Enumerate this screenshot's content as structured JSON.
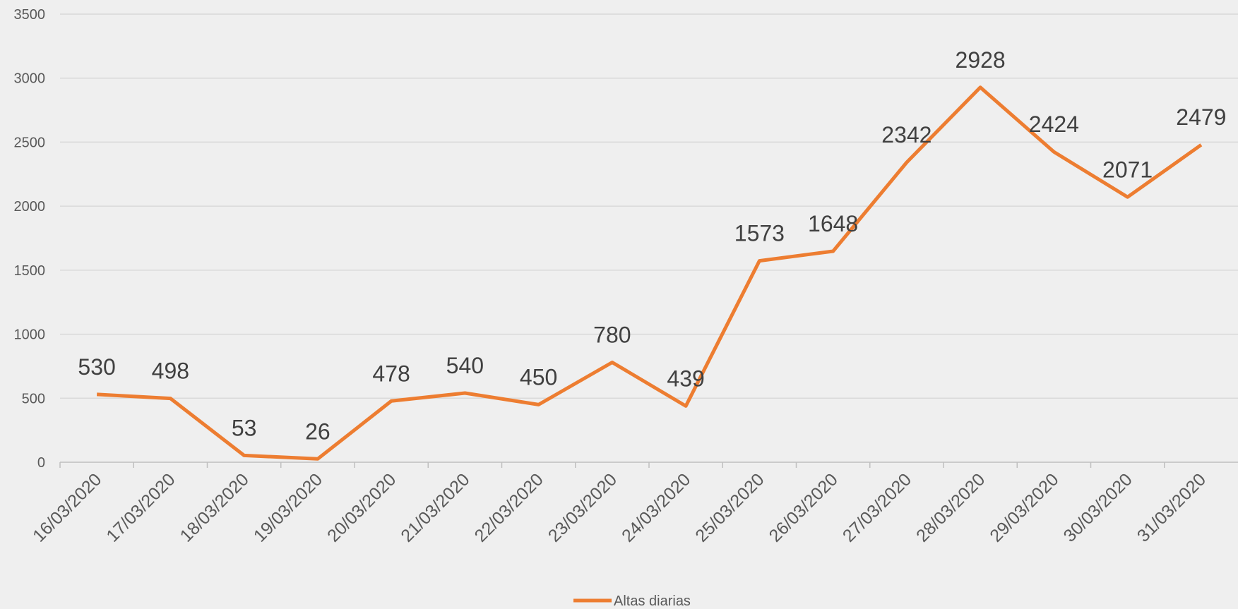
{
  "chart_data": {
    "type": "line",
    "categories": [
      "16/03/2020",
      "17/03/2020",
      "18/03/2020",
      "19/03/2020",
      "20/03/2020",
      "21/03/2020",
      "22/03/2020",
      "23/03/2020",
      "24/03/2020",
      "25/03/2020",
      "26/03/2020",
      "27/03/2020",
      "28/03/2020",
      "29/03/2020",
      "30/03/2020",
      "31/03/2020"
    ],
    "series": [
      {
        "name": "Altas diarias",
        "color": "#ed7d31",
        "values": [
          530,
          498,
          53,
          26,
          478,
          540,
          450,
          780,
          439,
          1573,
          1648,
          2342,
          2928,
          2424,
          2071,
          2479
        ]
      }
    ],
    "ylim": [
      0,
      3500
    ],
    "yticks": [
      0,
      500,
      1000,
      1500,
      2000,
      2500,
      3000,
      3500
    ],
    "grid": true,
    "legend": "bottom"
  }
}
